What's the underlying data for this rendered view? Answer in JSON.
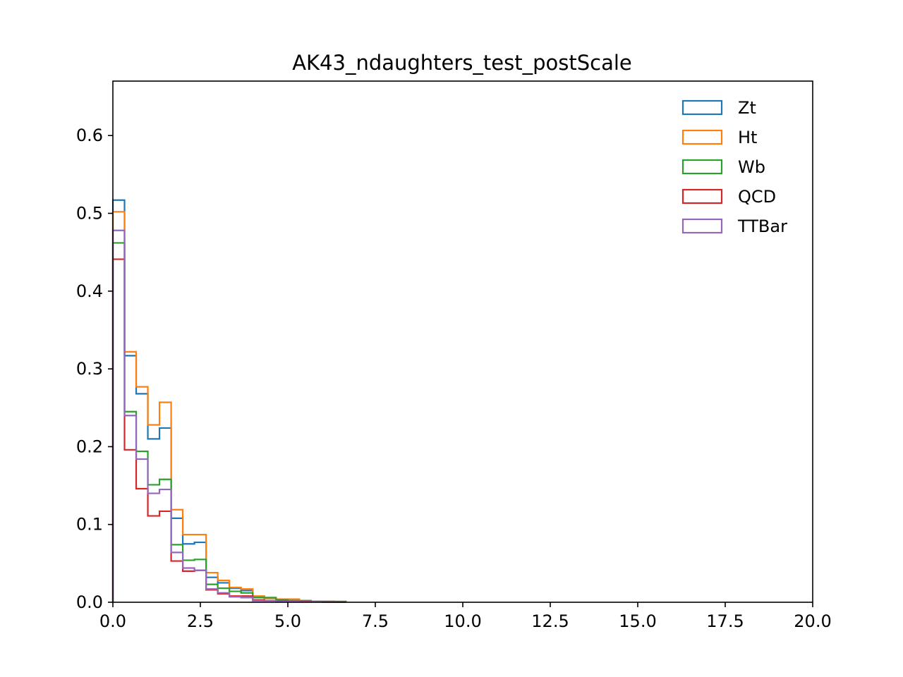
{
  "chart_data": {
    "type": "histogram-step",
    "title": "AK43_ndaughters_test_postScale",
    "xlabel": "",
    "ylabel": "",
    "xlim": [
      0,
      20
    ],
    "ylim": [
      0,
      0.67
    ],
    "x_ticks": [
      0,
      2.5,
      5,
      7.5,
      10,
      12.5,
      15,
      17.5,
      20
    ],
    "x_tick_labels": [
      "0.0",
      "2.5",
      "5.0",
      "7.5",
      "10.0",
      "12.5",
      "15.0",
      "17.5",
      "20.0"
    ],
    "y_ticks": [
      0,
      0.1,
      0.2,
      0.3,
      0.4,
      0.5,
      0.6
    ],
    "y_tick_labels": [
      "0.0",
      "0.1",
      "0.2",
      "0.3",
      "0.4",
      "0.5",
      "0.6"
    ],
    "bin_width": 0.333,
    "bin_edges_start": 0,
    "legend_position": "top-right",
    "grid": false,
    "series": [
      {
        "name": "Zt",
        "color": "#1f77b4",
        "values": [
          0.517,
          0.317,
          0.268,
          0.21,
          0.224,
          0.108,
          0.075,
          0.077,
          0.032,
          0.025,
          0.018,
          0.015,
          0.007,
          0.005,
          0.003,
          0.003,
          0.002,
          0.001,
          0.001,
          0.0005
        ]
      },
      {
        "name": "Ht",
        "color": "#ff7f0e",
        "values": [
          0.502,
          0.322,
          0.277,
          0.228,
          0.257,
          0.119,
          0.087,
          0.087,
          0.038,
          0.028,
          0.019,
          0.017,
          0.008,
          0.005,
          0.004,
          0.004,
          0.002,
          0.001,
          0.001,
          0.0005
        ]
      },
      {
        "name": "Wb",
        "color": "#2ca02c",
        "values": [
          0.462,
          0.245,
          0.194,
          0.151,
          0.158,
          0.074,
          0.054,
          0.055,
          0.023,
          0.018,
          0.014,
          0.012,
          0.006,
          0.006,
          0.003,
          0.002,
          0.002,
          0.001,
          0.001,
          0.001
        ]
      },
      {
        "name": "QCD",
        "color": "#d62728",
        "values": [
          0.441,
          0.196,
          0.146,
          0.111,
          0.117,
          0.053,
          0.04,
          0.041,
          0.016,
          0.011,
          0.008,
          0.008,
          0.003,
          0.002,
          0.002,
          0.001,
          0.001,
          0.0005,
          0.0005,
          0.0002
        ]
      },
      {
        "name": "TTBar",
        "color": "#9467bd",
        "values": [
          0.478,
          0.24,
          0.184,
          0.14,
          0.145,
          0.064,
          0.044,
          0.041,
          0.017,
          0.012,
          0.007,
          0.006,
          0.002,
          0.002,
          0.001,
          0.001,
          0.0005,
          0.0005,
          0.0002,
          0.0001
        ]
      }
    ]
  }
}
